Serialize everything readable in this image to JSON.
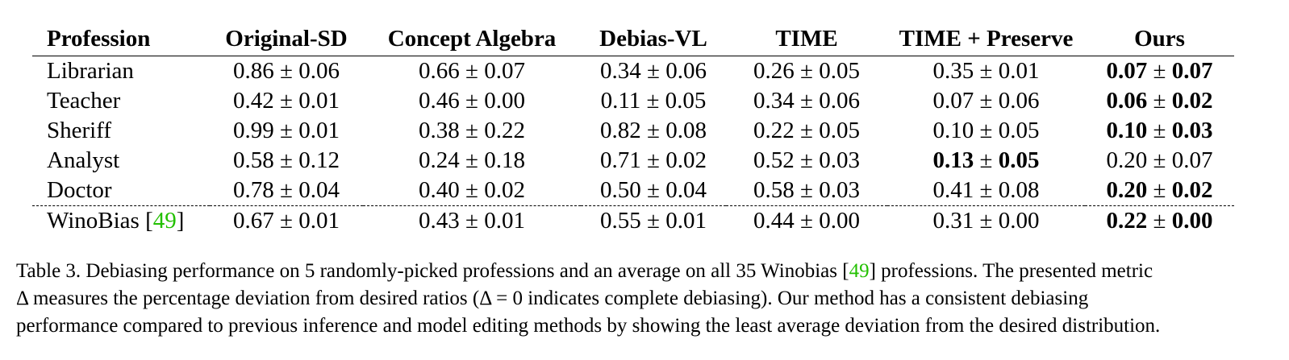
{
  "table": {
    "headers": [
      "Profession",
      "Original-SD",
      "Concept Algebra",
      "Debias-VL",
      "TIME",
      "TIME + Preserve",
      "Ours"
    ],
    "rows": [
      {
        "label": "Librarian",
        "cells": [
          {
            "mean": "0.86",
            "std": "0.06",
            "bold": false
          },
          {
            "mean": "0.66",
            "std": "0.07",
            "bold": false
          },
          {
            "mean": "0.34",
            "std": "0.06",
            "bold": false
          },
          {
            "mean": "0.26",
            "std": "0.05",
            "bold": false
          },
          {
            "mean": "0.35",
            "std": "0.01",
            "bold": false
          },
          {
            "mean": "0.07",
            "std": "0.07",
            "bold": true
          }
        ]
      },
      {
        "label": "Teacher",
        "cells": [
          {
            "mean": "0.42",
            "std": "0.01",
            "bold": false
          },
          {
            "mean": "0.46",
            "std": "0.00",
            "bold": false
          },
          {
            "mean": "0.11",
            "std": "0.05",
            "bold": false
          },
          {
            "mean": "0.34",
            "std": "0.06",
            "bold": false
          },
          {
            "mean": "0.07",
            "std": "0.06",
            "bold": false
          },
          {
            "mean": "0.06",
            "std": "0.02",
            "bold": true
          }
        ]
      },
      {
        "label": "Sheriff",
        "cells": [
          {
            "mean": "0.99",
            "std": "0.01",
            "bold": false
          },
          {
            "mean": "0.38",
            "std": "0.22",
            "bold": false
          },
          {
            "mean": "0.82",
            "std": "0.08",
            "bold": false
          },
          {
            "mean": "0.22",
            "std": "0.05",
            "bold": false
          },
          {
            "mean": "0.10",
            "std": "0.05",
            "bold": false
          },
          {
            "mean": "0.10",
            "std": "0.03",
            "bold": true
          }
        ]
      },
      {
        "label": "Analyst",
        "cells": [
          {
            "mean": "0.58",
            "std": "0.12",
            "bold": false
          },
          {
            "mean": "0.24",
            "std": "0.18",
            "bold": false
          },
          {
            "mean": "0.71",
            "std": "0.02",
            "bold": false
          },
          {
            "mean": "0.52",
            "std": "0.03",
            "bold": false
          },
          {
            "mean": "0.13",
            "std": "0.05",
            "bold": true
          },
          {
            "mean": "0.20",
            "std": "0.07",
            "bold": false
          }
        ]
      },
      {
        "label": "Doctor",
        "cells": [
          {
            "mean": "0.78",
            "std": "0.04",
            "bold": false
          },
          {
            "mean": "0.40",
            "std": "0.02",
            "bold": false
          },
          {
            "mean": "0.50",
            "std": "0.04",
            "bold": false
          },
          {
            "mean": "0.58",
            "std": "0.03",
            "bold": false
          },
          {
            "mean": "0.41",
            "std": "0.08",
            "bold": false
          },
          {
            "mean": "0.20",
            "std": "0.02",
            "bold": true
          }
        ]
      }
    ],
    "summary_row": {
      "label": "WinoBias",
      "cite": "49",
      "cells": [
        {
          "mean": "0.67",
          "std": "0.01",
          "bold": false
        },
        {
          "mean": "0.43",
          "std": "0.01",
          "bold": false
        },
        {
          "mean": "0.55",
          "std": "0.01",
          "bold": false
        },
        {
          "mean": "0.44",
          "std": "0.00",
          "bold": false
        },
        {
          "mean": "0.31",
          "std": "0.00",
          "bold": false
        },
        {
          "mean": "0.22",
          "std": "0.00",
          "bold": true
        }
      ]
    },
    "pm_symbol": "±",
    "cite_color": "#22c000"
  },
  "caption": {
    "line1_a": "Table 3. Debiasing performance on 5 randomly-picked professions and an average on all 35 Winobias [",
    "line1_cite": "49",
    "line1_b": "] professions. The presented metric",
    "line2": "Δ measures the percentage deviation from desired ratios (Δ = 0 indicates complete debiasing). Our method has a consistent debiasing",
    "line3": "performance compared to previous inference and model editing methods by showing the least average deviation from the desired distribution."
  }
}
